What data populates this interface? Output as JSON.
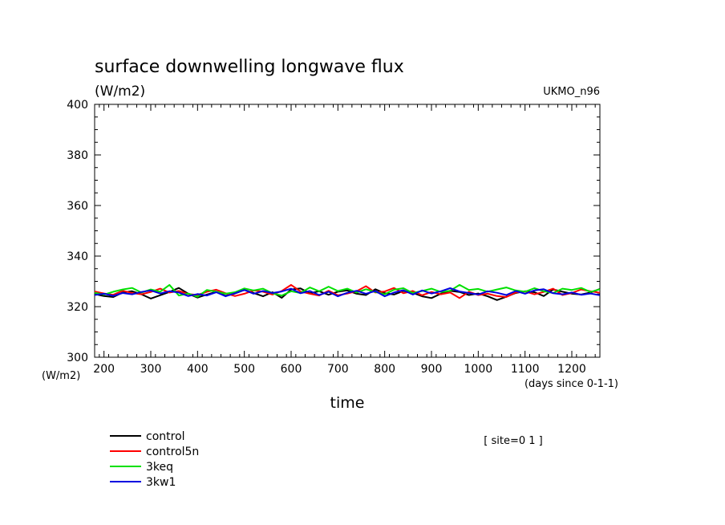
{
  "chart_data": {
    "type": "line",
    "title": "surface downwelling longwave flux",
    "subtitle": "(W/m2)",
    "model_label": "UKMO_n96",
    "ylabel": "(W/m2)",
    "xlabel": "time",
    "x_units_label": "(days since 0-1-1)",
    "site_label": "[ site=0 1 ]",
    "xlim": [
      180,
      1260
    ],
    "ylim": [
      300,
      400
    ],
    "x_ticks": [
      200,
      300,
      400,
      500,
      600,
      700,
      800,
      900,
      1000,
      1100,
      1200
    ],
    "y_ticks": [
      300,
      320,
      340,
      360,
      380,
      400
    ],
    "grid": false,
    "legend_position": "bottom-left",
    "x": [
      180,
      200,
      220,
      240,
      260,
      280,
      300,
      320,
      340,
      360,
      380,
      400,
      420,
      440,
      460,
      480,
      500,
      520,
      540,
      560,
      580,
      600,
      620,
      640,
      660,
      680,
      700,
      720,
      740,
      760,
      780,
      800,
      820,
      840,
      860,
      880,
      900,
      920,
      940,
      960,
      980,
      1000,
      1020,
      1040,
      1060,
      1080,
      1100,
      1120,
      1140,
      1160,
      1180,
      1200,
      1220,
      1240,
      1260
    ],
    "series": [
      {
        "name": "control",
        "color": "#000000",
        "values": [
          325.0,
          324.2,
          323.8,
          325.6,
          326.1,
          324.9,
          323.2,
          324.5,
          325.8,
          327.4,
          325.1,
          323.6,
          324.8,
          325.9,
          324.3,
          325.2,
          326.6,
          325.4,
          324.1,
          325.7,
          323.5,
          326.8,
          327.2,
          325.3,
          326.1,
          324.7,
          325.9,
          326.4,
          325.1,
          324.6,
          326.9,
          325.3,
          324.8,
          326.2,
          325.5,
          324.1,
          323.4,
          325.1,
          326.3,
          325.8,
          324.6,
          325.2,
          324.1,
          322.6,
          323.9,
          325.4,
          326.1,
          325.7,
          324.2,
          326.8,
          325.9,
          325.1,
          324.8,
          325.6,
          327.0
        ]
      },
      {
        "name": "control5n",
        "color": "#ff0000",
        "values": [
          326.0,
          325.2,
          324.7,
          326.3,
          325.4,
          324.9,
          325.8,
          327.1,
          325.6,
          326.2,
          325.0,
          324.6,
          325.9,
          326.7,
          325.3,
          324.2,
          325.1,
          326.4,
          325.9,
          324.8,
          326.2,
          328.6,
          326.0,
          325.1,
          324.4,
          326.3,
          324.5,
          325.2,
          326.1,
          328.1,
          325.6,
          326.0,
          327.4,
          325.3,
          326.2,
          324.5,
          325.8,
          324.9,
          325.6,
          323.4,
          325.9,
          324.6,
          325.1,
          324.2,
          323.8,
          325.6,
          326.0,
          324.9,
          325.8,
          327.1,
          324.6,
          325.4,
          326.8,
          326.1,
          325.5
        ]
      },
      {
        "name": "3keq",
        "color": "#00e000",
        "values": [
          325.5,
          324.8,
          325.9,
          326.8,
          327.4,
          325.6,
          326.8,
          325.9,
          328.6,
          324.4,
          325.2,
          323.9,
          326.6,
          325.9,
          325.1,
          325.7,
          327.2,
          326.4,
          327.1,
          325.3,
          324.4,
          326.1,
          325.4,
          327.6,
          326.1,
          327.9,
          326.2,
          327.1,
          325.6,
          326.9,
          325.8,
          324.9,
          326.7,
          327.3,
          325.4,
          326.2,
          327.1,
          325.8,
          326.3,
          328.6,
          326.6,
          327.0,
          325.9,
          326.8,
          327.6,
          326.4,
          325.9,
          327.3,
          326.1,
          325.4,
          327.1,
          326.6,
          327.4,
          325.8,
          326.9
        ]
      },
      {
        "name": "3kw1",
        "color": "#0000e0",
        "values": [
          324.6,
          325.1,
          324.3,
          325.4,
          324.9,
          325.8,
          326.4,
          325.2,
          326.1,
          325.6,
          324.2,
          325.0,
          324.4,
          325.7,
          324.1,
          325.3,
          326.6,
          325.1,
          326.2,
          325.4,
          326.0,
          327.1,
          325.3,
          326.2,
          324.6,
          325.9,
          324.1,
          325.5,
          326.3,
          325.1,
          326.2,
          324.1,
          325.6,
          326.5,
          324.8,
          326.4,
          325.2,
          326.1,
          327.3,
          326.0,
          325.4,
          324.8,
          326.1,
          325.5,
          324.6,
          326.2,
          325.1,
          326.4,
          326.9,
          325.3,
          324.9,
          325.6,
          324.7,
          325.2,
          324.5
        ]
      }
    ]
  }
}
